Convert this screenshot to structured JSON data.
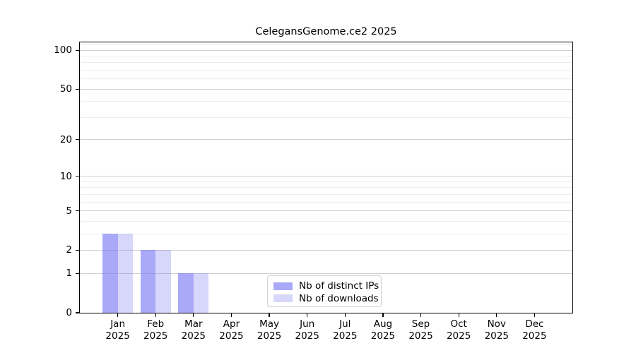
{
  "chart_data": {
    "type": "bar",
    "title": "CelegansGenome.ce2 2025",
    "categories": [
      "Jan",
      "Feb",
      "Mar",
      "Apr",
      "May",
      "Jun",
      "Jul",
      "Aug",
      "Sep",
      "Oct",
      "Nov",
      "Dec"
    ],
    "x_tick_year_line": "2025",
    "series": [
      {
        "name": "Nb of distinct IPs",
        "color": "rgba(123,123,243,0.65)",
        "values": [
          3,
          2,
          1,
          0,
          0,
          0,
          0,
          0,
          0,
          0,
          0,
          0
        ]
      },
      {
        "name": "Nb of downloads",
        "color": "rgba(123,123,243,0.30)",
        "values": [
          3,
          2,
          1,
          0,
          0,
          0,
          0,
          0,
          0,
          0,
          0,
          0
        ]
      }
    ],
    "xlabel": "",
    "ylabel": "",
    "yscale": "log1p",
    "ylim": [
      0,
      115
    ],
    "y_major_ticks": [
      0,
      1,
      2,
      5,
      10,
      20,
      50,
      100
    ],
    "y_minor_gridlines": [
      3,
      4,
      6,
      7,
      8,
      9,
      30,
      40,
      60,
      70,
      80,
      90,
      110
    ],
    "grid": "horizontal major and minor",
    "legend_position": "inside lower center",
    "colors": {
      "grid_major": "#cfcfcf",
      "grid_minor": "#ededed",
      "spine": "#000000",
      "text": "#000000",
      "background": "#ffffff",
      "legend_border": "#d2d2d2",
      "bar_base": "#7b7bf3"
    }
  }
}
